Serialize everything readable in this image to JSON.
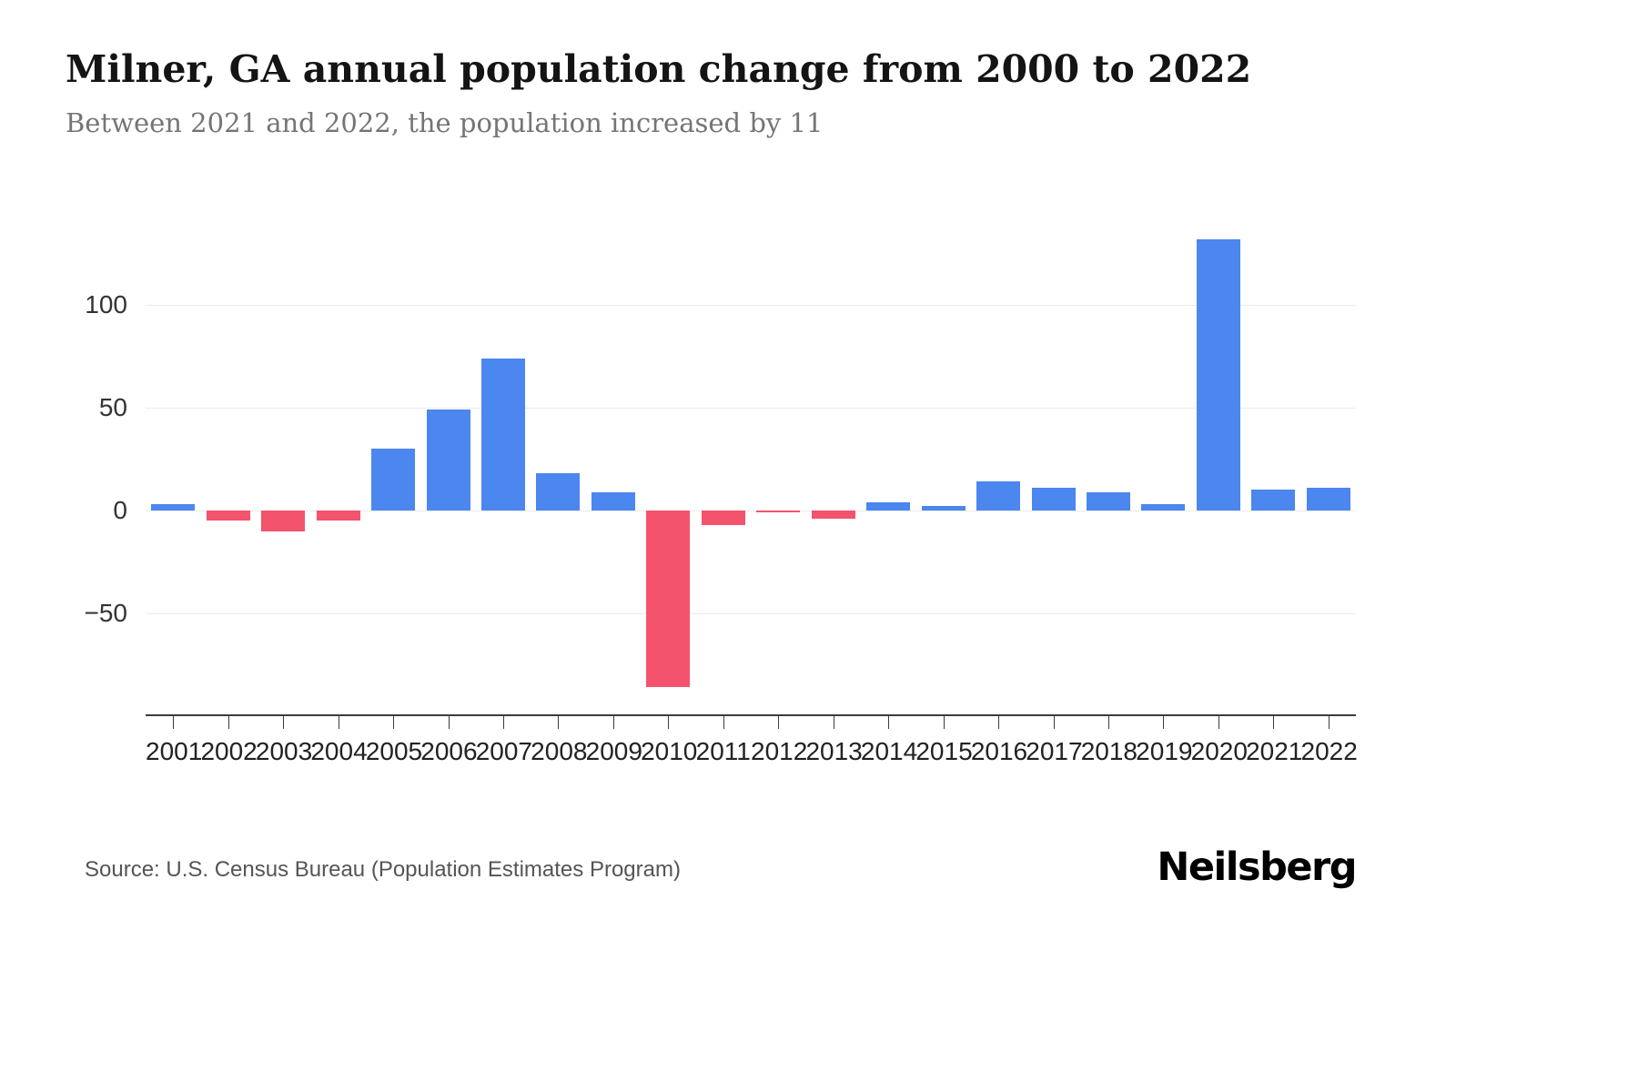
{
  "header": {
    "title": "Milner, GA annual population change from 2000 to 2022",
    "subtitle": "Between 2021 and 2022, the population increased by 11"
  },
  "footer": {
    "source": "Source: U.S. Census Bureau (Population Estimates Program)",
    "brand": "Neilsberg"
  },
  "chart_data": {
    "type": "bar",
    "title": "Milner, GA annual population change from 2000 to 2022",
    "subtitle": "Between 2021 and 2022, the population increased by 11",
    "categories": [
      "2001",
      "2002",
      "2003",
      "2004",
      "2005",
      "2006",
      "2007",
      "2008",
      "2009",
      "2010",
      "2011",
      "2012",
      "2013",
      "2014",
      "2015",
      "2016",
      "2017",
      "2018",
      "2019",
      "2020",
      "2021",
      "2022"
    ],
    "values": [
      3,
      -5,
      -10,
      -5,
      30,
      49,
      74,
      18,
      9,
      -86,
      -7,
      -1,
      -4,
      4,
      2,
      14,
      11,
      9,
      3,
      132,
      10,
      11
    ],
    "yticks": [
      100,
      50,
      0,
      -50
    ],
    "ytick_labels": [
      "100",
      "50",
      "0",
      "−50"
    ],
    "ylim": [
      -100,
      140
    ],
    "grid": true,
    "legend": "none",
    "xlabel": "",
    "ylabel": "",
    "colors": {
      "positive": "#4C86EF",
      "negative": "#F4536E",
      "gridline": "#EBEBEB",
      "axis": "#3C3C3C"
    }
  }
}
